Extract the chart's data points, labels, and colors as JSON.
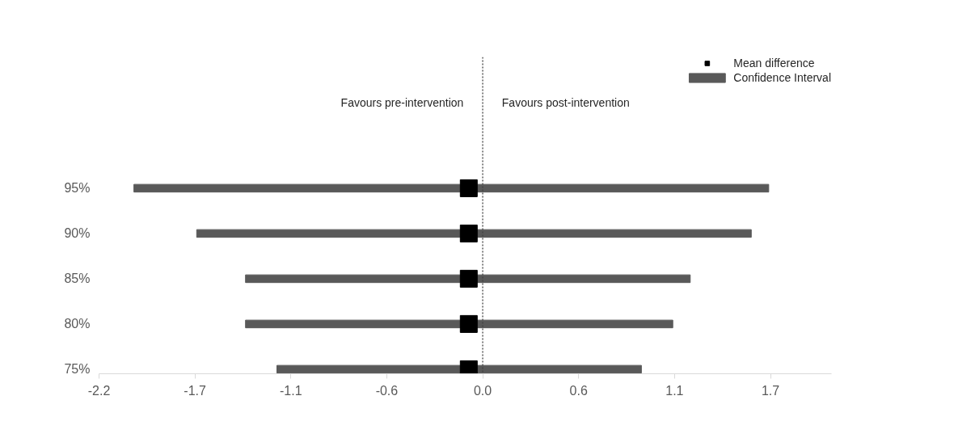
{
  "chart_data": {
    "type": "bar",
    "orientation": "horizontal",
    "categories": [
      "95%",
      "90%",
      "85%",
      "80%",
      "75%"
    ],
    "series": [
      {
        "name": "Confidence Interval",
        "color": "#595959",
        "base": [
          -2.0,
          -1.64,
          -1.36,
          -1.36,
          -1.18
        ],
        "values": [
          3.64,
          3.18,
          2.55,
          2.45,
          2.09
        ]
      },
      {
        "name": "Mean difference",
        "type": "scatter",
        "color": "#000000",
        "marker": "square",
        "values": [
          -0.08,
          -0.08,
          -0.08,
          -0.08,
          -0.08
        ]
      }
    ],
    "xlim": [
      -2.2,
      2.0
    ],
    "xticks": [
      -2.2,
      {
        "value": -1.65,
        "label": "-1.7"
      },
      -1.1,
      {
        "value": -0.55,
        "label": "-0.6"
      },
      {
        "value": 0,
        "label": "0.0"
      },
      {
        "value": 0.55,
        "label": "0.6"
      },
      1.1,
      {
        "value": 1.65,
        "label": "1.7"
      }
    ],
    "ref_lines": [
      {
        "axis": "x",
        "value": 0,
        "color": "#404040",
        "line_style": "dotted"
      }
    ],
    "annotations": [
      "Favours pre-intervention",
      "Favours post-intervention"
    ],
    "legend": "top right",
    "grid": false
  }
}
